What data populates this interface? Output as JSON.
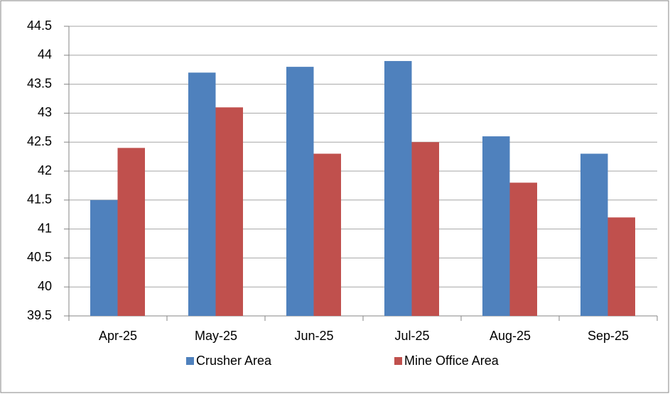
{
  "chart_data": {
    "type": "bar",
    "categories": [
      "Apr-25",
      "May-25",
      "Jun-25",
      "Jul-25",
      "Aug-25",
      "Sep-25"
    ],
    "series": [
      {
        "name": "Crusher Area",
        "color": "#4f81bd",
        "values": [
          41.5,
          43.7,
          43.8,
          43.9,
          42.6,
          42.3
        ]
      },
      {
        "name": "Mine Office Area",
        "color": "#c0504d",
        "values": [
          42.4,
          43.1,
          42.3,
          42.5,
          41.8,
          41.2
        ]
      }
    ],
    "ylim": [
      39.5,
      44.5
    ],
    "yticks": [
      39.5,
      40,
      40.5,
      41,
      41.5,
      42,
      42.5,
      43,
      43.5,
      44,
      44.5
    ],
    "grid": true,
    "legend": "bottom"
  }
}
